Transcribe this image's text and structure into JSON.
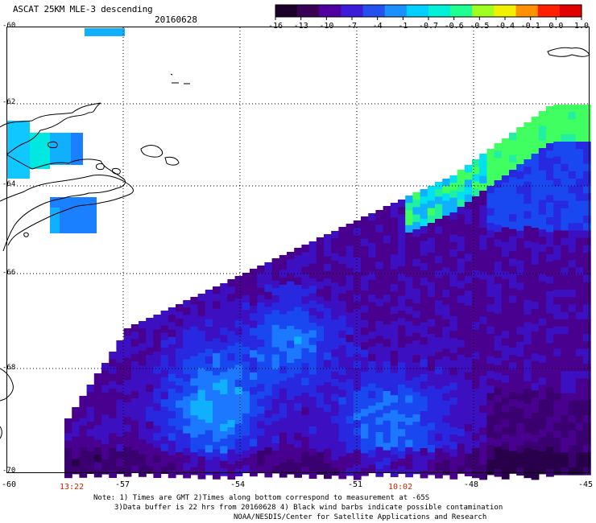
{
  "header": {
    "title": "ASCAT 25KM MLE-3 descending",
    "date": "20160628"
  },
  "colorbar": {
    "labels": [
      "-16",
      "-13",
      "-10",
      "-7",
      "-4",
      "-1",
      "-0.7",
      "-0.6",
      "-0.5",
      "-0.4",
      "-0.1",
      "0.0",
      "1.0"
    ],
    "colors": [
      "#1a0028",
      "#3a0058",
      "#5000a0",
      "#3c1cd8",
      "#2450f0",
      "#1a90ff",
      "#00d0ff",
      "#00f0d8",
      "#20ff90",
      "#a0ff20",
      "#f0f000",
      "#ff9000",
      "#ff2000",
      "#e00000"
    ]
  },
  "map": {
    "lat_labels": [
      "-60",
      "-62",
      "-64",
      "-66",
      "-68",
      "-70"
    ],
    "lon_labels": [
      "-60",
      "-57",
      "-54",
      "-51",
      "-48",
      "-45"
    ],
    "time_labels": [
      "13:22",
      "10:02"
    ]
  },
  "notes": {
    "line1": "Note: 1) Times are GMT 2)Times along bottom correspond to measurement at -65S",
    "line2": "3)Data buffer is 22 hrs from 20160628 4) Black wind barbs indicate possible contamination",
    "line3": "NOAA/NESDIS/Center for Satellite Applications and Research"
  }
}
